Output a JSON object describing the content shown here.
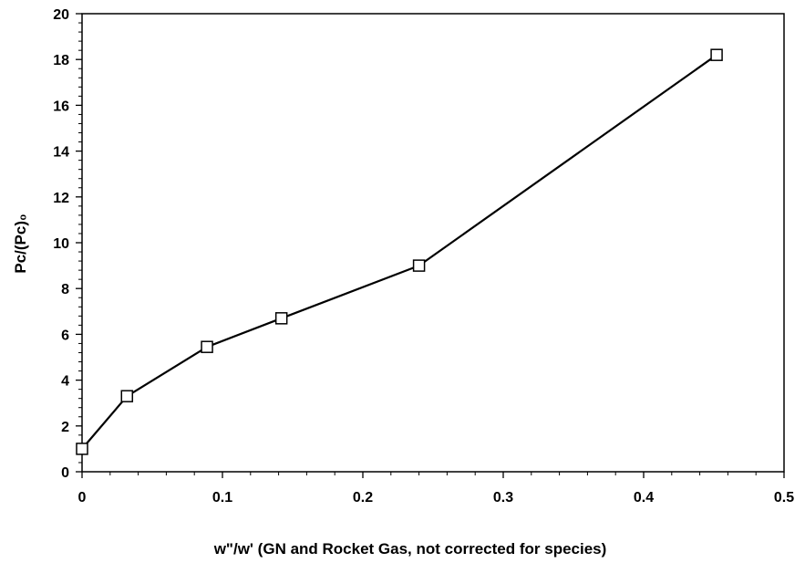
{
  "chart_data": {
    "type": "line",
    "title": "",
    "xlabel": "w\"/w' (GN and Rocket Gas, not corrected for species)",
    "ylabel": "Pc/(Pc)₀",
    "xlim": [
      0,
      0.5
    ],
    "ylim": [
      0,
      20
    ],
    "x_ticks": [
      0,
      0.1,
      0.2,
      0.3,
      0.4,
      0.5
    ],
    "x_tick_labels": [
      "0",
      "0.1",
      "0.2",
      "0.3",
      "0.4",
      "0.5"
    ],
    "y_ticks": [
      0,
      2,
      4,
      6,
      8,
      10,
      12,
      14,
      16,
      18,
      20
    ],
    "y_tick_labels": [
      "0",
      "2",
      "4",
      "6",
      "8",
      "10",
      "12",
      "14",
      "16",
      "18",
      "20"
    ],
    "grid": false,
    "legend": "none",
    "marker": "open-square",
    "line_color": "#000000",
    "series": [
      {
        "x": [
          0,
          0.032,
          0.089,
          0.142,
          0.24,
          0.452
        ],
        "y": [
          1.0,
          3.3,
          5.45,
          6.7,
          9.0,
          18.2
        ]
      }
    ]
  }
}
